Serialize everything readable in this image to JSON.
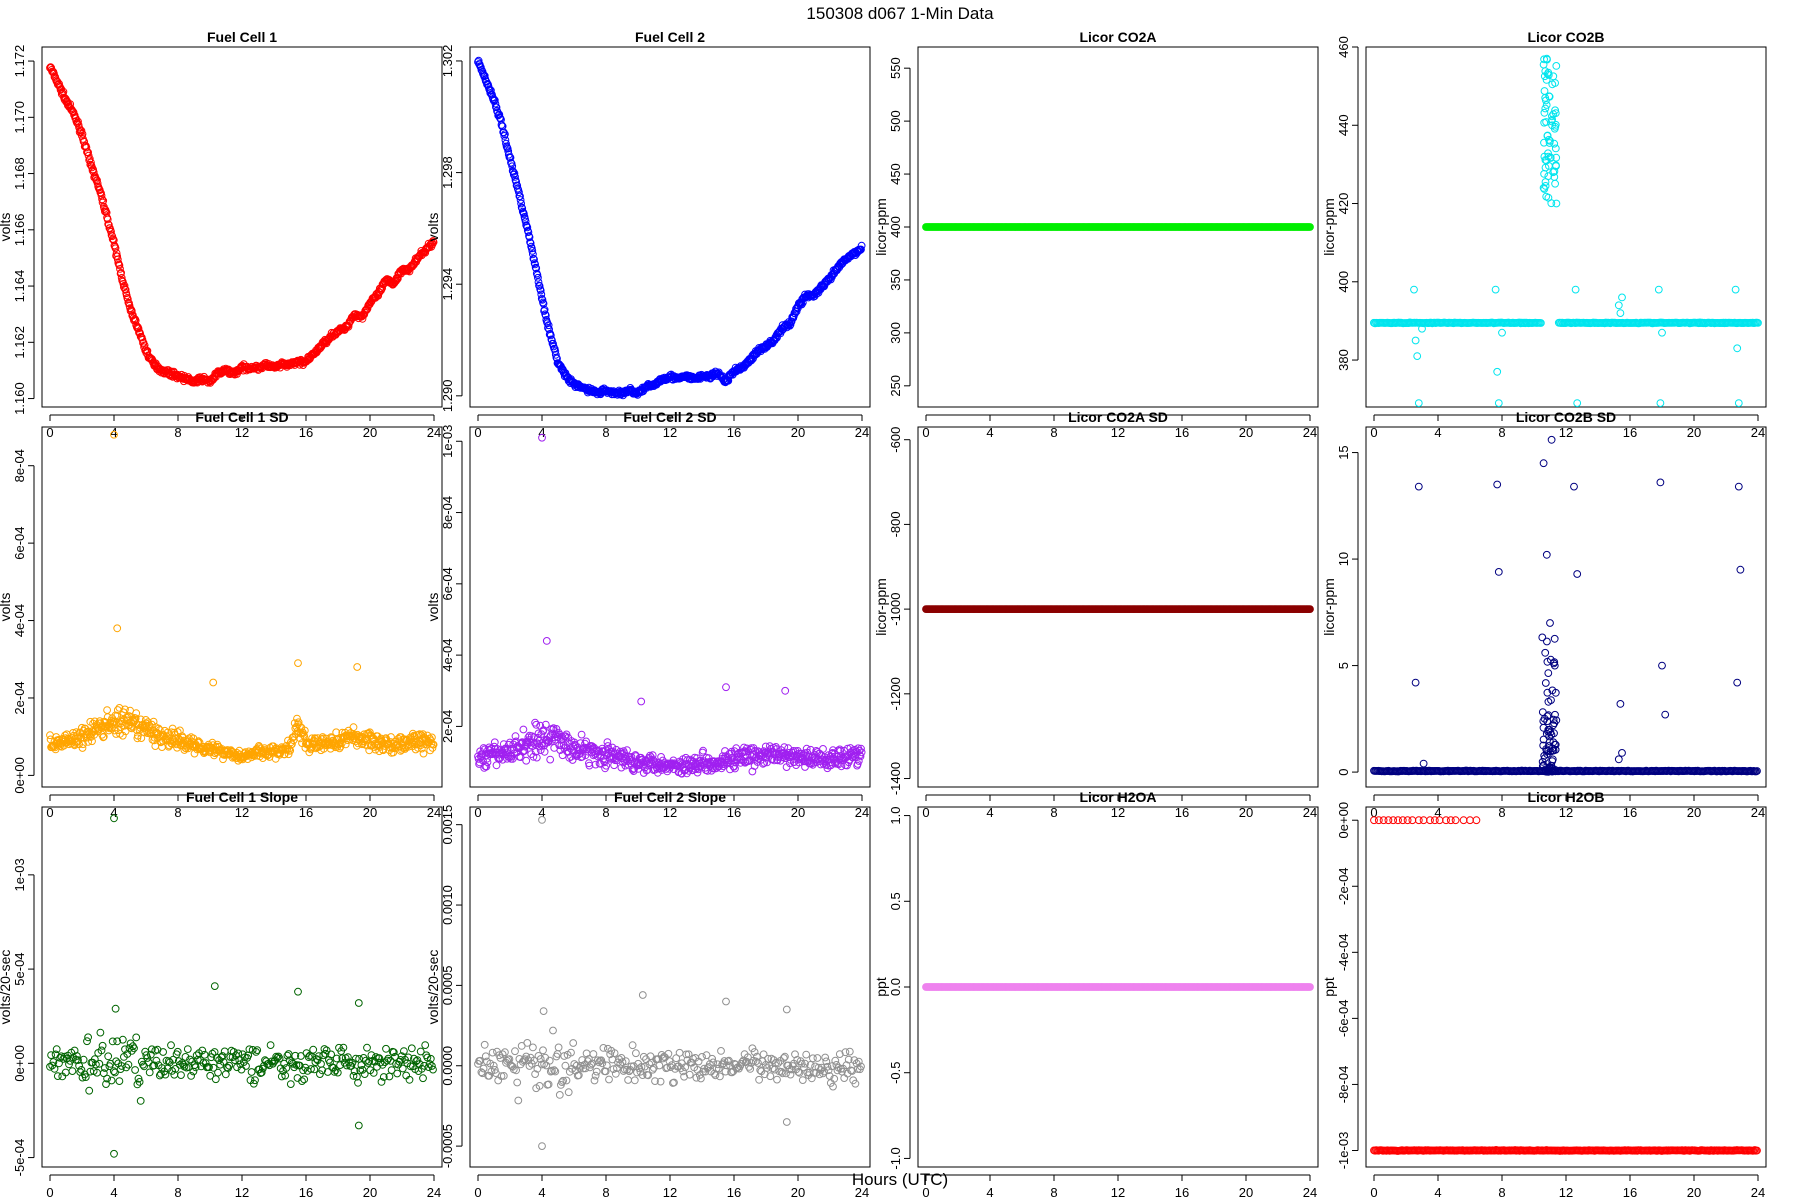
{
  "title": "150308   d067   1-Min Data",
  "xlabel": "Hours (UTC)",
  "chart_data": [
    {
      "type": "scatter",
      "title": "Fuel Cell 1",
      "ylabel": "volts",
      "color": "#ff0000",
      "xlim": [
        -0.5,
        24.5
      ],
      "ylim": [
        1.1597,
        1.1725
      ],
      "xticks": [
        0,
        4,
        8,
        12,
        16,
        20,
        24
      ],
      "xtick_labels": [
        "0",
        "4",
        "8",
        "12",
        "16",
        "20",
        "24"
      ],
      "yticks": [
        1.16,
        1.162,
        1.164,
        1.166,
        1.168,
        1.17,
        1.172
      ],
      "ytick_labels": [
        "1.160",
        "1.162",
        "1.164",
        "1.166",
        "1.168",
        "1.170",
        "1.172"
      ],
      "series": [
        {
          "x": [
            0,
            0.5,
            1,
            1.5,
            2,
            2.5,
            3,
            3.5,
            4,
            4.5,
            5,
            5.5,
            6,
            6.5,
            7,
            7.5,
            8,
            8.5,
            9,
            9.5,
            10,
            10.5,
            11,
            11.5,
            12,
            12.5,
            13,
            13.5,
            14,
            14.5,
            15,
            15.5,
            16,
            16.5,
            17,
            17.5,
            18,
            18.5,
            19,
            19.5,
            20,
            20.5,
            21,
            21.5,
            22,
            22.5,
            23,
            23.5,
            24
          ],
          "y": [
            1.1718,
            1.1712,
            1.1706,
            1.1701,
            1.1694,
            1.1684,
            1.1676,
            1.1666,
            1.1655,
            1.1643,
            1.1632,
            1.1625,
            1.1617,
            1.1612,
            1.161,
            1.1609,
            1.1608,
            1.1607,
            1.1606,
            1.1607,
            1.1606,
            1.1609,
            1.161,
            1.1609,
            1.1611,
            1.1611,
            1.1611,
            1.1612,
            1.1611,
            1.1612,
            1.1612,
            1.1613,
            1.1613,
            1.1616,
            1.1619,
            1.1622,
            1.1624,
            1.1625,
            1.163,
            1.1629,
            1.1634,
            1.1637,
            1.1642,
            1.1641,
            1.1646,
            1.1646,
            1.165,
            1.1653,
            1.1656
          ]
        }
      ]
    },
    {
      "type": "scatter",
      "title": "Fuel Cell 2",
      "ylabel": "volts",
      "color": "#0000ff",
      "xlim": [
        -0.5,
        24.5
      ],
      "ylim": [
        1.2896,
        1.3025
      ],
      "xticks": [
        0,
        4,
        8,
        12,
        16,
        20,
        24
      ],
      "xtick_labels": [
        "0",
        "4",
        "8",
        "12",
        "16",
        "20",
        "24"
      ],
      "yticks": [
        1.29,
        1.294,
        1.298,
        1.302
      ],
      "ytick_labels": [
        "1.290",
        "1.294",
        "1.298",
        "1.302"
      ],
      "series": [
        {
          "x": [
            0,
            0.5,
            1,
            1.5,
            2,
            2.5,
            3,
            3.5,
            4,
            4.5,
            5,
            5.5,
            6,
            6.5,
            7,
            7.5,
            8,
            8.5,
            9,
            9.5,
            10,
            10.5,
            11,
            11.5,
            12,
            12.5,
            13,
            13.5,
            14,
            14.5,
            15,
            15.5,
            16,
            16.5,
            17,
            17.5,
            18,
            18.5,
            19,
            19.5,
            20,
            20.5,
            21,
            21.5,
            22,
            22.5,
            23,
            23.5,
            24
          ],
          "y": [
            1.302,
            1.3013,
            1.3006,
            1.2997,
            1.2985,
            1.2974,
            1.2962,
            1.2949,
            1.2935,
            1.2922,
            1.2912,
            1.2907,
            1.2904,
            1.2903,
            1.2902,
            1.2901,
            1.2902,
            1.2901,
            1.2901,
            1.2902,
            1.2901,
            1.2903,
            1.2904,
            1.2906,
            1.2907,
            1.2906,
            1.2907,
            1.2906,
            1.2907,
            1.2907,
            1.2908,
            1.2905,
            1.2909,
            1.291,
            1.2913,
            1.2916,
            1.2918,
            1.292,
            1.2924,
            1.2926,
            1.2932,
            1.2936,
            1.2936,
            1.2939,
            1.2942,
            1.2946,
            1.2949,
            1.2951,
            1.2953
          ]
        }
      ]
    },
    {
      "type": "scatter",
      "title": "Licor CO2A",
      "ylabel": "licor-ppm",
      "color": "#00ee00",
      "fill": true,
      "xlim": [
        -0.5,
        24.5
      ],
      "ylim": [
        230,
        570
      ],
      "xticks": [
        0,
        4,
        8,
        12,
        16,
        20,
        24
      ],
      "xtick_labels": [
        "0",
        "4",
        "8",
        "12",
        "16",
        "20",
        "24"
      ],
      "yticks": [
        250,
        300,
        350,
        400,
        450,
        500,
        550
      ],
      "ytick_labels": [
        "250",
        "300",
        "350",
        "400",
        "450",
        "500",
        "550"
      ],
      "series": [
        {
          "x": [
            0,
            24
          ],
          "y": [
            400,
            400
          ],
          "constant": true
        }
      ]
    },
    {
      "type": "scatter",
      "title": "Licor CO2B",
      "ylabel": "licor-ppm",
      "color": "#00e5ee",
      "xlim": [
        -0.5,
        24.5
      ],
      "ylim": [
        368,
        460
      ],
      "xticks": [
        0,
        4,
        8,
        12,
        16,
        20,
        24
      ],
      "xtick_labels": [
        "0",
        "4",
        "8",
        "12",
        "16",
        "20",
        "24"
      ],
      "yticks": [
        380,
        400,
        420,
        440,
        460
      ],
      "ytick_labels": [
        "380",
        "400",
        "420",
        "440",
        "460"
      ],
      "series": [
        {
          "x": [
            0,
            2.5,
            2.6,
            2.7,
            2.8,
            3.0,
            7.6,
            7.7,
            7.8,
            8.0,
            10.6,
            10.7,
            10.8,
            10.9,
            11.0,
            11.1,
            11.2,
            11.4,
            12.6,
            12.7,
            15.3,
            15.4,
            15.5,
            17.8,
            17.9,
            18.0,
            22.6,
            22.7,
            22.8,
            24
          ],
          "y": [
            389.5,
            398,
            385,
            381,
            369,
            388,
            398,
            377,
            369,
            387,
            424,
            447,
            457,
            432,
            436,
            441,
            428,
            420,
            398,
            369,
            394,
            392,
            396,
            398,
            369,
            387,
            398,
            383,
            369,
            389.5
          ],
          "baseline": 389.5
        }
      ]
    },
    {
      "type": "scatter",
      "title": "Fuel Cell 1 SD",
      "ylabel": "volts",
      "color": "#ffa500",
      "xlim": [
        -0.5,
        24.5
      ],
      "ylim": [
        -3e-05,
        0.0009
      ],
      "xticks": [
        0,
        4,
        8,
        12,
        16,
        20,
        24
      ],
      "xtick_labels": [
        "0",
        "4",
        "8",
        "12",
        "16",
        "20",
        "24"
      ],
      "yticks": [
        0,
        0.0002,
        0.0004,
        0.0006,
        0.0008
      ],
      "ytick_labels": [
        "0e+00",
        "2e-04",
        "4e-04",
        "6e-04",
        "8e-04"
      ],
      "series": [
        {
          "x": [
            0,
            1,
            2,
            3,
            4,
            5,
            6,
            7,
            8,
            9,
            10,
            11,
            12,
            13,
            14,
            15,
            15.5,
            16,
            17,
            18,
            19,
            20,
            21,
            22,
            23,
            24
          ],
          "y": [
            8e-05,
            9e-05,
            0.0001,
            0.00012,
            0.00014,
            0.00013,
            0.00012,
            0.0001,
            9e-05,
            8e-05,
            7e-05,
            6e-05,
            5e-05,
            6e-05,
            6e-05,
            7e-05,
            0.00013,
            8e-05,
            8e-05,
            9e-05,
            0.0001,
            9e-05,
            8e-05,
            8e-05,
            9e-05,
            8e-05
          ],
          "outliers": [
            [
              4.0,
              0.00088
            ],
            [
              4.2,
              0.00038
            ],
            [
              15.5,
              0.00029
            ],
            [
              19.2,
              0.00028
            ],
            [
              10.2,
              0.00024
            ]
          ]
        }
      ]
    },
    {
      "type": "scatter",
      "title": "Fuel Cell 2 SD",
      "ylabel": "volts",
      "color": "#a020f0",
      "xlim": [
        -0.5,
        24.5
      ],
      "ylim": [
        3e-05,
        0.00104
      ],
      "xticks": [
        0,
        4,
        8,
        12,
        16,
        20,
        24
      ],
      "xtick_labels": [
        "0",
        "4",
        "8",
        "12",
        "16",
        "20",
        "24"
      ],
      "yticks": [
        0.0002,
        0.0004,
        0.0006,
        0.0008,
        0.001
      ],
      "ytick_labels": [
        "2e-04",
        "4e-04",
        "6e-04",
        "8e-04",
        "1e-03"
      ],
      "series": [
        {
          "x": [
            0,
            1,
            2,
            3,
            4,
            5,
            6,
            7,
            8,
            9,
            10,
            11,
            12,
            13,
            14,
            15,
            16,
            17,
            18,
            19,
            20,
            21,
            22,
            23,
            24
          ],
          "y": [
            0.00011,
            0.00012,
            0.00013,
            0.00015,
            0.00017,
            0.00016,
            0.00014,
            0.00013,
            0.00012,
            0.00011,
            0.0001,
            0.0001,
            9e-05,
            9e-05,
            0.0001,
            0.0001,
            0.00011,
            0.00011,
            0.00012,
            0.00012,
            0.00011,
            0.00011,
            0.00011,
            0.00012,
            0.00012
          ],
          "outliers": [
            [
              4.0,
              0.00101
            ],
            [
              4.3,
              0.00044
            ],
            [
              15.5,
              0.00031
            ],
            [
              19.2,
              0.0003
            ],
            [
              10.2,
              0.00027
            ]
          ]
        }
      ]
    },
    {
      "type": "scatter",
      "title": "Licor CO2A SD",
      "ylabel": "licor-ppm",
      "color": "#8b0000",
      "fill": true,
      "xlim": [
        -0.5,
        24.5
      ],
      "ylim": [
        -1420,
        -570
      ],
      "xticks": [
        0,
        4,
        8,
        12,
        16,
        20,
        24
      ],
      "xtick_labels": [
        "0",
        "4",
        "8",
        "12",
        "16",
        "20",
        "24"
      ],
      "yticks": [
        -1400,
        -1200,
        -1000,
        -800,
        -600
      ],
      "ytick_labels": [
        "-1400",
        "-1200",
        "-1000",
        "-800",
        "-600"
      ],
      "series": [
        {
          "x": [
            0,
            24
          ],
          "y": [
            -1000,
            -1000
          ],
          "constant": true
        }
      ]
    },
    {
      "type": "scatter",
      "title": "Licor CO2B SD",
      "ylabel": "licor-ppm",
      "color": "#000080",
      "xlim": [
        -0.5,
        24.5
      ],
      "ylim": [
        -0.7,
        16.2
      ],
      "xticks": [
        0,
        4,
        8,
        12,
        16,
        20,
        24
      ],
      "xtick_labels": [
        "0",
        "4",
        "8",
        "12",
        "16",
        "20",
        "24"
      ],
      "yticks": [
        0,
        5,
        10,
        15
      ],
      "ytick_labels": [
        "0",
        "5",
        "10",
        "15"
      ],
      "series": [
        {
          "x": [
            2.6,
            2.8,
            3.1,
            7.7,
            7.8,
            10.6,
            10.7,
            10.8,
            10.9,
            11.0,
            11.1,
            11.2,
            11.3,
            12.5,
            12.7,
            15.3,
            15.4,
            15.5,
            17.9,
            18.0,
            18.2,
            22.7,
            22.8,
            22.9
          ],
          "y": [
            4.2,
            13.4,
            0.4,
            13.5,
            9.4,
            14.5,
            5.6,
            10.2,
            3.3,
            7.0,
            15.6,
            2.2,
            5.0,
            13.4,
            9.3,
            0.6,
            3.2,
            0.9,
            13.6,
            5.0,
            2.7,
            4.2,
            13.4,
            9.5
          ],
          "baseline": 0.05
        }
      ]
    },
    {
      "type": "scatter",
      "title": "Fuel Cell 1 Slope",
      "ylabel": "volts/20-sec",
      "color": "#006400",
      "xlim": [
        -0.5,
        24.5
      ],
      "ylim": [
        -0.00055,
        0.00136
      ],
      "xticks": [
        0,
        4,
        8,
        12,
        16,
        20,
        24
      ],
      "xtick_labels": [
        "0",
        "4",
        "8",
        "12",
        "16",
        "20",
        "24"
      ],
      "yticks": [
        -0.0005,
        0,
        0.0005,
        0.001
      ],
      "ytick_labels": [
        "-5e-04",
        "0e+00",
        "5e-04",
        "1e-03"
      ],
      "series": [
        {
          "x": [
            0,
            24
          ],
          "y": [
            0,
            0
          ],
          "spread": 8e-05,
          "outliers": [
            [
              4.0,
              0.0013
            ],
            [
              4.0,
              -0.00048
            ],
            [
              10.3,
              0.00041
            ],
            [
              15.5,
              0.00038
            ],
            [
              19.3,
              0.00032
            ],
            [
              19.3,
              -0.00033
            ],
            [
              4.1,
              0.00029
            ]
          ]
        }
      ]
    },
    {
      "type": "scatter",
      "title": "Fuel Cell 2 Slope",
      "ylabel": "volts/20-sec",
      "color": "#909090",
      "xlim": [
        -0.5,
        24.5
      ],
      "ylim": [
        -0.00063,
        0.00161
      ],
      "xticks": [
        0,
        4,
        8,
        12,
        16,
        20,
        24
      ],
      "xtick_labels": [
        "0",
        "4",
        "8",
        "12",
        "16",
        "20",
        "24"
      ],
      "yticks": [
        -0.0005,
        0,
        0.0005,
        0.001,
        0.0015
      ],
      "ytick_labels": [
        "-0.0005",
        "0.0000",
        "0.0005",
        "0.0010",
        "0.0015"
      ],
      "series": [
        {
          "x": [
            0,
            24
          ],
          "y": [
            0,
            0
          ],
          "spread": 9e-05,
          "outliers": [
            [
              4.0,
              0.00153
            ],
            [
              4.0,
              -0.0005
            ],
            [
              10.3,
              0.00044
            ],
            [
              15.5,
              0.0004
            ],
            [
              19.3,
              0.00035
            ],
            [
              19.3,
              -0.00035
            ],
            [
              4.1,
              0.00034
            ]
          ]
        }
      ]
    },
    {
      "type": "scatter",
      "title": "Licor H2OA",
      "ylabel": "ppt",
      "color": "#ee82ee",
      "fill": true,
      "xlim": [
        -0.5,
        24.5
      ],
      "ylim": [
        -1.05,
        1.05
      ],
      "xticks": [
        0,
        4,
        8,
        12,
        16,
        20,
        24
      ],
      "xtick_labels": [
        "0",
        "4",
        "8",
        "12",
        "16",
        "20",
        "24"
      ],
      "yticks": [
        -1.0,
        -0.5,
        0.0,
        0.5,
        1.0
      ],
      "ytick_labels": [
        "-1.0",
        "-0.5",
        "0.0",
        "0.5",
        "1.0"
      ],
      "series": [
        {
          "x": [
            0,
            24
          ],
          "y": [
            0,
            0
          ],
          "constant": true
        }
      ]
    },
    {
      "type": "scatter",
      "title": "Licor H2OB",
      "ylabel": "ppt",
      "color": "#ff0000",
      "xlim": [
        -0.5,
        24.5
      ],
      "ylim": [
        -0.00105,
        4e-05
      ],
      "xticks": [
        0,
        4,
        8,
        12,
        16,
        20,
        24
      ],
      "xtick_labels": [
        "0",
        "4",
        "8",
        "12",
        "16",
        "20",
        "24"
      ],
      "yticks": [
        -0.001,
        -0.0008,
        -0.0006,
        -0.0004,
        -0.0002,
        0
      ],
      "ytick_labels": [
        "-1e-03",
        "-8e-04",
        "-6e-04",
        "-4e-04",
        "-2e-04",
        "0e+00"
      ],
      "series": [
        {
          "x": [
            0.0,
            0.3,
            0.6,
            0.9,
            1.2,
            1.5,
            1.8,
            2.1,
            2.4,
            2.8,
            3.1,
            3.5,
            3.8,
            4.1,
            4.5,
            4.8,
            5.1,
            5.6,
            6.0,
            6.4
          ],
          "y": [
            0,
            0,
            0,
            0,
            0,
            0,
            0,
            0,
            0,
            0,
            0,
            0,
            0,
            0,
            0,
            0,
            0,
            0,
            0,
            0
          ],
          "baseline": -0.001
        }
      ]
    }
  ]
}
